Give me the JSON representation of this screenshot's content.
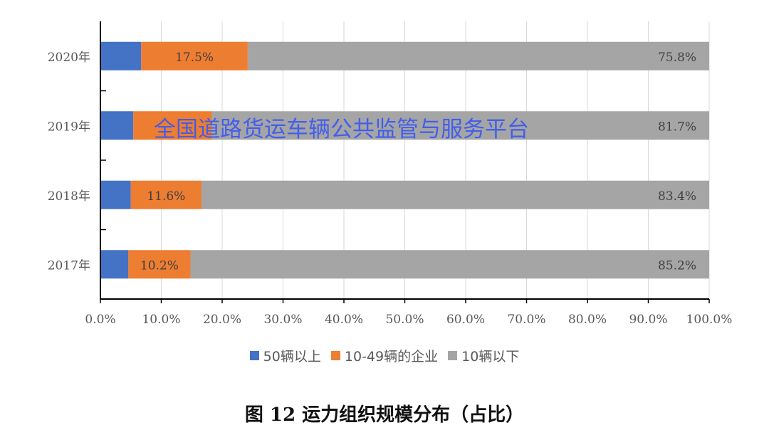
{
  "chart_data": {
    "type": "bar",
    "orientation": "horizontal",
    "stacked": true,
    "categories": [
      "2020年",
      "2019年",
      "2018年",
      "2017年"
    ],
    "series": [
      {
        "name": "50辆以上",
        "color": "#4472c4",
        "values": [
          6.7,
          5.4,
          5.0,
          4.6
        ],
        "labels": [
          "",
          "",
          "",
          ""
        ]
      },
      {
        "name": "10-49辆的企业",
        "color": "#ed7d31",
        "values": [
          17.5,
          12.9,
          11.6,
          10.2
        ],
        "labels": [
          "17.5%",
          "",
          "11.6%",
          "10.2%"
        ]
      },
      {
        "name": "10辆以下",
        "color": "#a5a5a5",
        "values": [
          75.8,
          81.7,
          83.4,
          85.2
        ],
        "labels": [
          "75.8%",
          "81.7%",
          "83.4%",
          "85.2%"
        ]
      }
    ],
    "xlim": [
      0,
      100
    ],
    "xticks": [
      "0.0%",
      "10.0%",
      "20.0%",
      "30.0%",
      "40.0%",
      "50.0%",
      "60.0%",
      "70.0%",
      "80.0%",
      "90.0%",
      "100.0%"
    ],
    "grid": true,
    "legend": "bottom",
    "caption": "图 12 运力组织规模分布（占比）"
  },
  "watermark": "全国道路货运车辆公共监管与服务平台"
}
